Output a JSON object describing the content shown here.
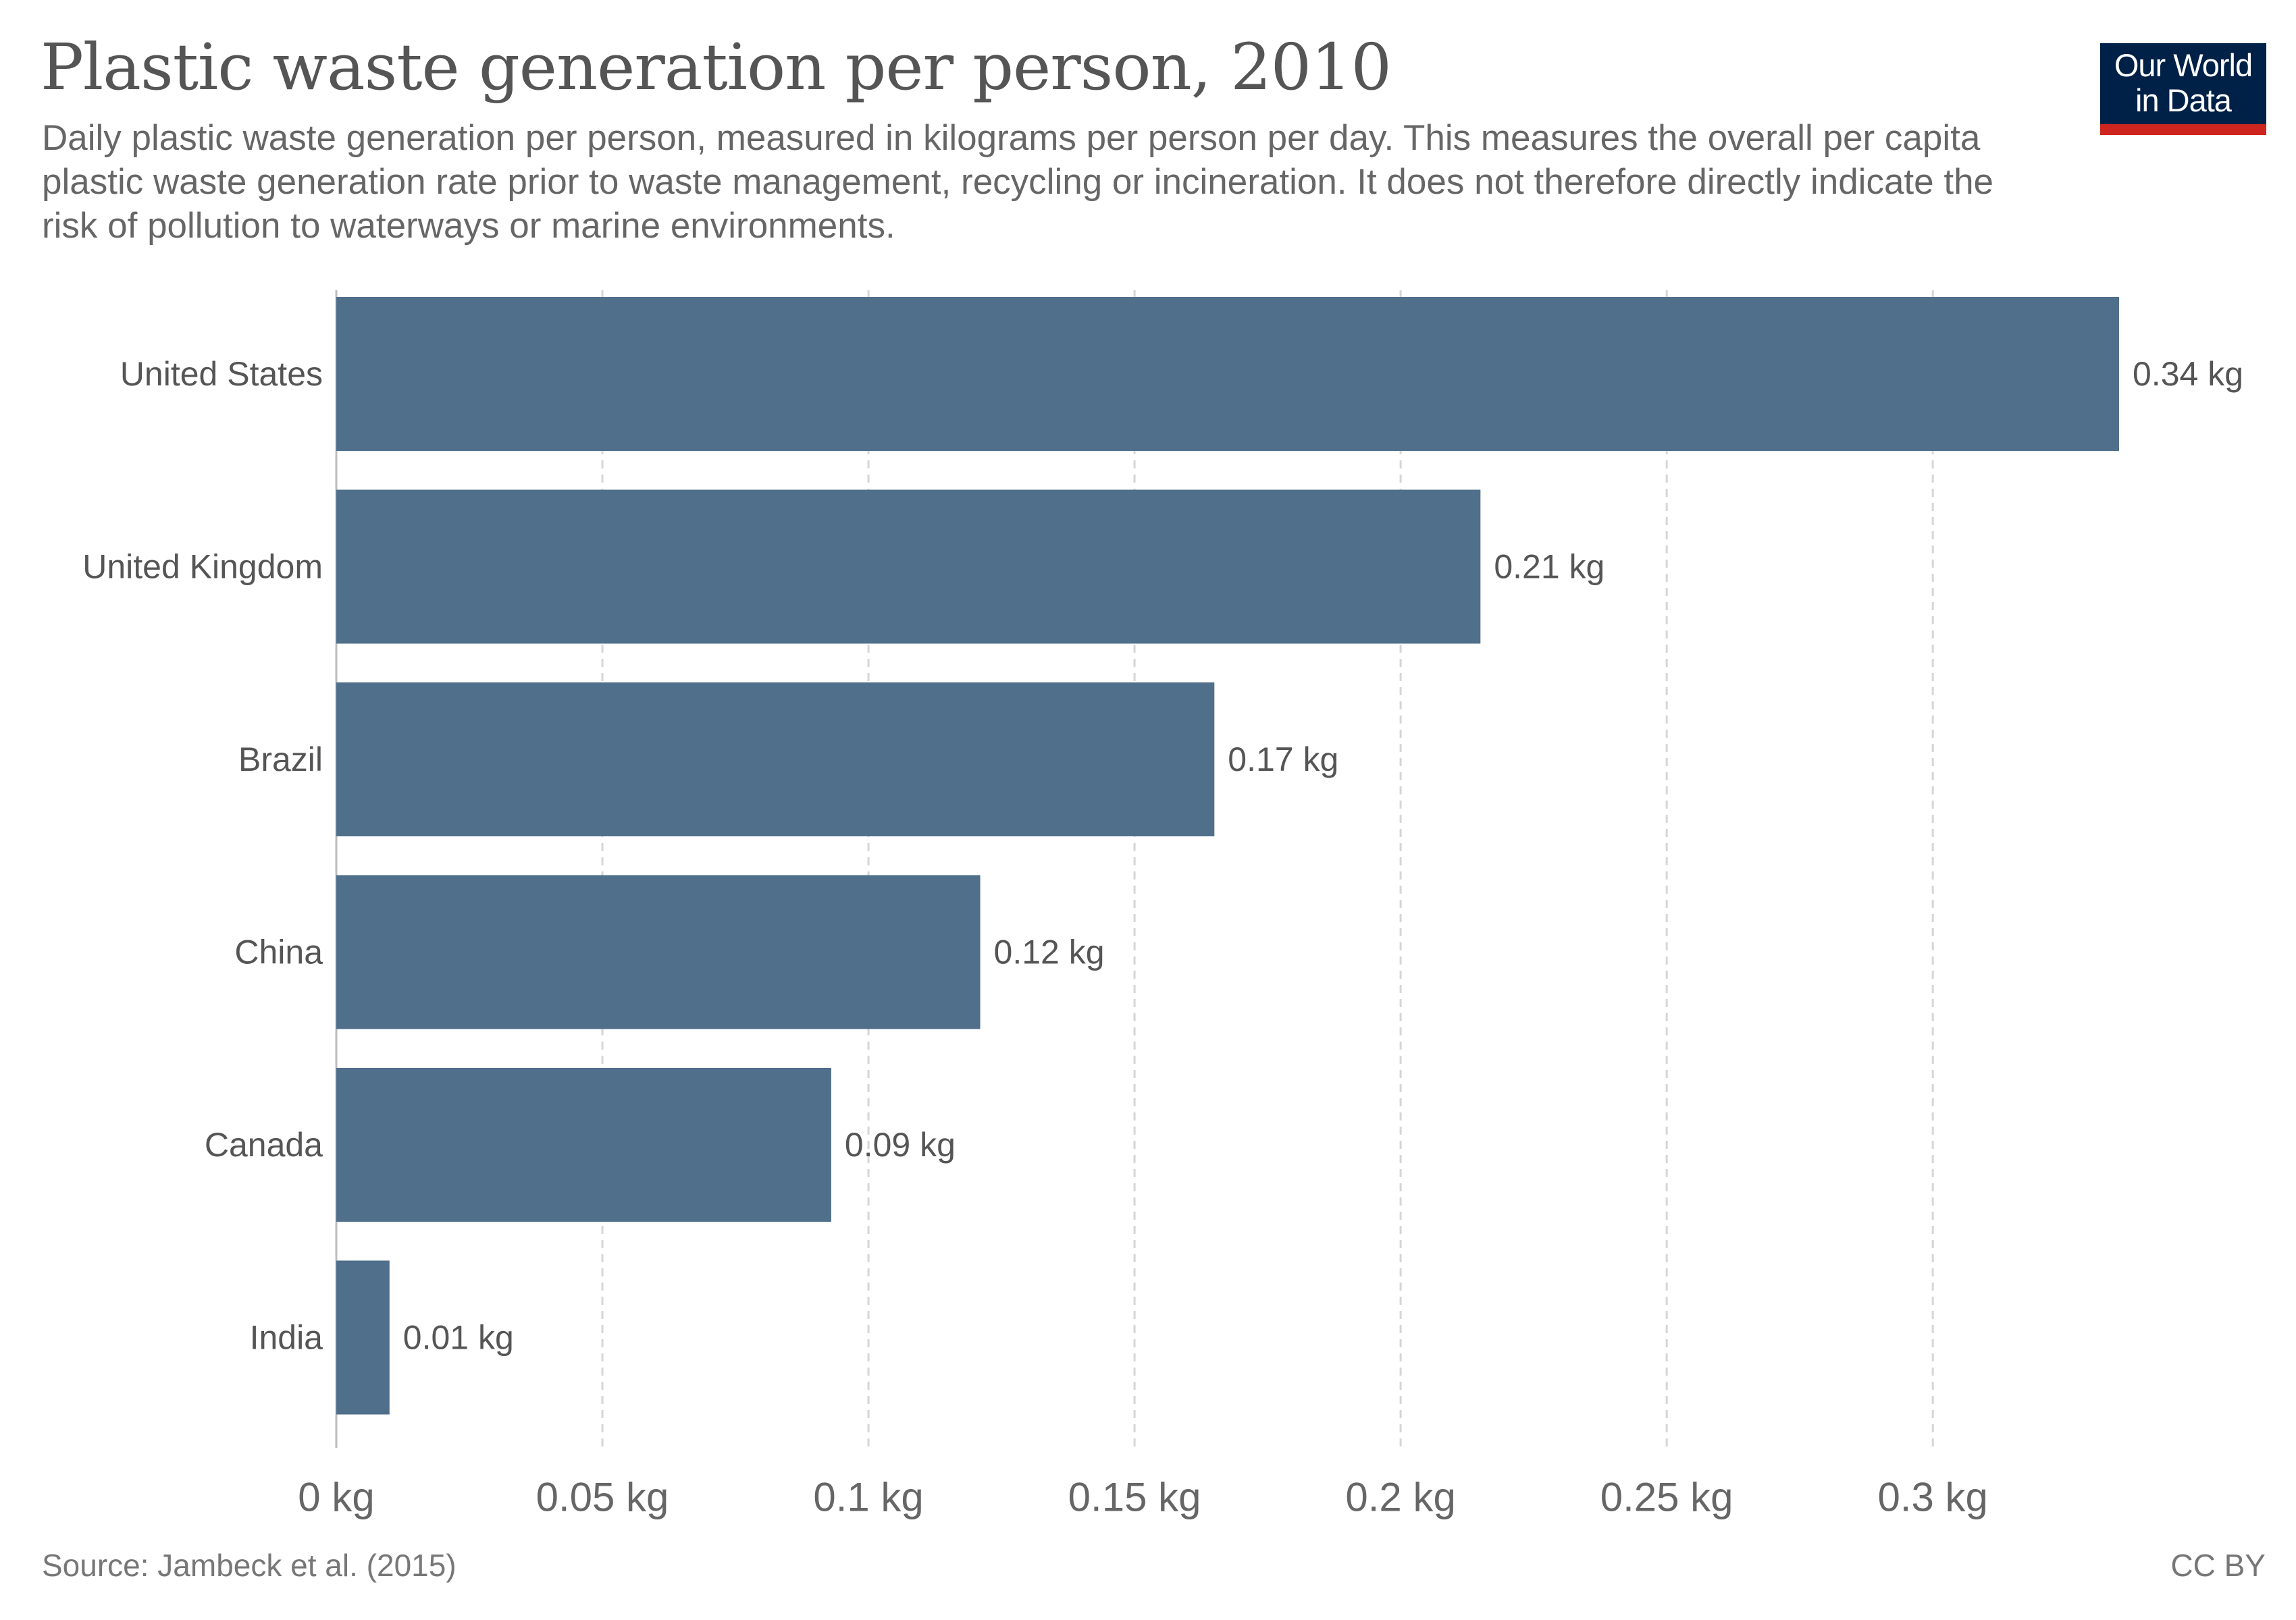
{
  "header": {
    "title": "Plastic waste generation per person, 2010",
    "subtitle": "Daily plastic waste generation per person, measured in kilograms per person per day. This measures the overall per capita plastic waste generation rate prior to waste management, recycling or incineration. It does not therefore directly indicate the risk of pollution to waterways or marine environments."
  },
  "logo": {
    "line1": "Our World",
    "line2": "in Data",
    "background_color": "#002147",
    "accent_color": "#ce261e"
  },
  "footer": {
    "source": "Source: Jambeck et al. (2015)",
    "license": "CC BY"
  },
  "chart_data": {
    "type": "bar",
    "orientation": "horizontal",
    "title": "Plastic waste generation per person, 2010",
    "unit": "kg",
    "categories": [
      "United States",
      "United Kingdom",
      "Brazil",
      "China",
      "Canada",
      "India"
    ],
    "values": [
      0.335,
      0.215,
      0.165,
      0.121,
      0.093,
      0.01
    ],
    "value_labels": [
      "0.34 kg",
      "0.21 kg",
      "0.17 kg",
      "0.12 kg",
      "0.09 kg",
      "0.01 kg"
    ],
    "xlim": [
      0,
      0.335
    ],
    "x_ticks": [
      0,
      0.05,
      0.1,
      0.15,
      0.2,
      0.25,
      0.3
    ],
    "x_tick_labels": [
      "0 kg",
      "0.05 kg",
      "0.1 kg",
      "0.15 kg",
      "0.2 kg",
      "0.25 kg",
      "0.3 kg"
    ],
    "grid": true,
    "bar_color": "#4f6f8b",
    "xlabel": "",
    "ylabel": ""
  }
}
